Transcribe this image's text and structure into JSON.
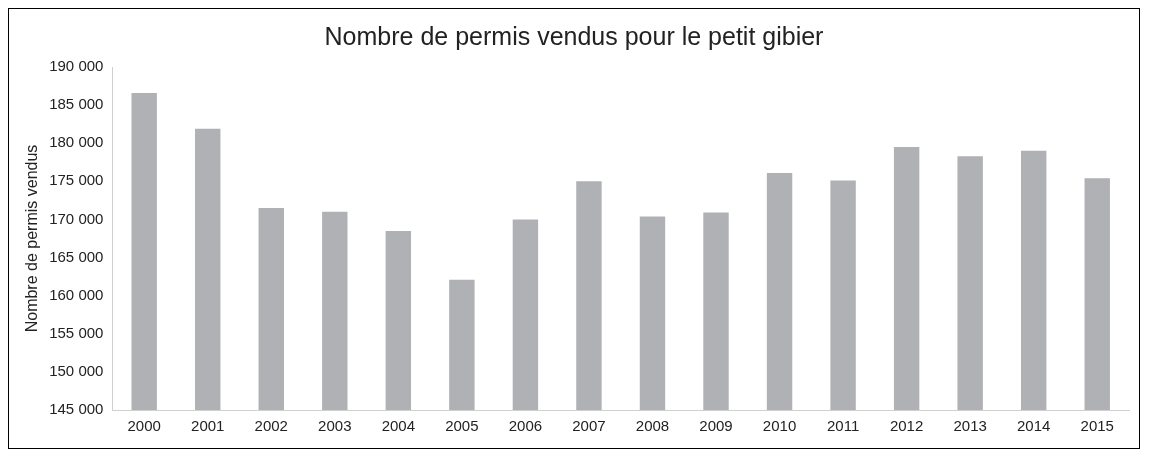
{
  "chart_data": {
    "type": "bar",
    "title": "Nombre de permis vendus pour le petit gibier",
    "ylabel": "Nombre de permis vendus",
    "categories": [
      "2000",
      "2001",
      "2002",
      "2003",
      "2004",
      "2005",
      "2006",
      "2007",
      "2008",
      "2009",
      "2010",
      "2011",
      "2012",
      "2013",
      "2014",
      "2015"
    ],
    "values": [
      186600,
      181900,
      171500,
      171000,
      168500,
      162100,
      170000,
      175000,
      170400,
      170900,
      176100,
      175100,
      179500,
      178300,
      179000,
      175400
    ],
    "color": "#b0b1b5",
    "ylim": [
      145000,
      190000
    ],
    "yticks": [
      {
        "value": 145000,
        "label": "145 000"
      },
      {
        "value": 150000,
        "label": "150 000"
      },
      {
        "value": 155000,
        "label": "155 000"
      },
      {
        "value": 160000,
        "label": "160 000"
      },
      {
        "value": 165000,
        "label": "165 000"
      },
      {
        "value": 170000,
        "label": "170 000"
      },
      {
        "value": 175000,
        "label": "175 000"
      },
      {
        "value": 180000,
        "label": "180 000"
      },
      {
        "value": 185000,
        "label": "185 000"
      },
      {
        "value": 190000,
        "label": "190 000"
      }
    ],
    "grid": false,
    "legend": false
  }
}
